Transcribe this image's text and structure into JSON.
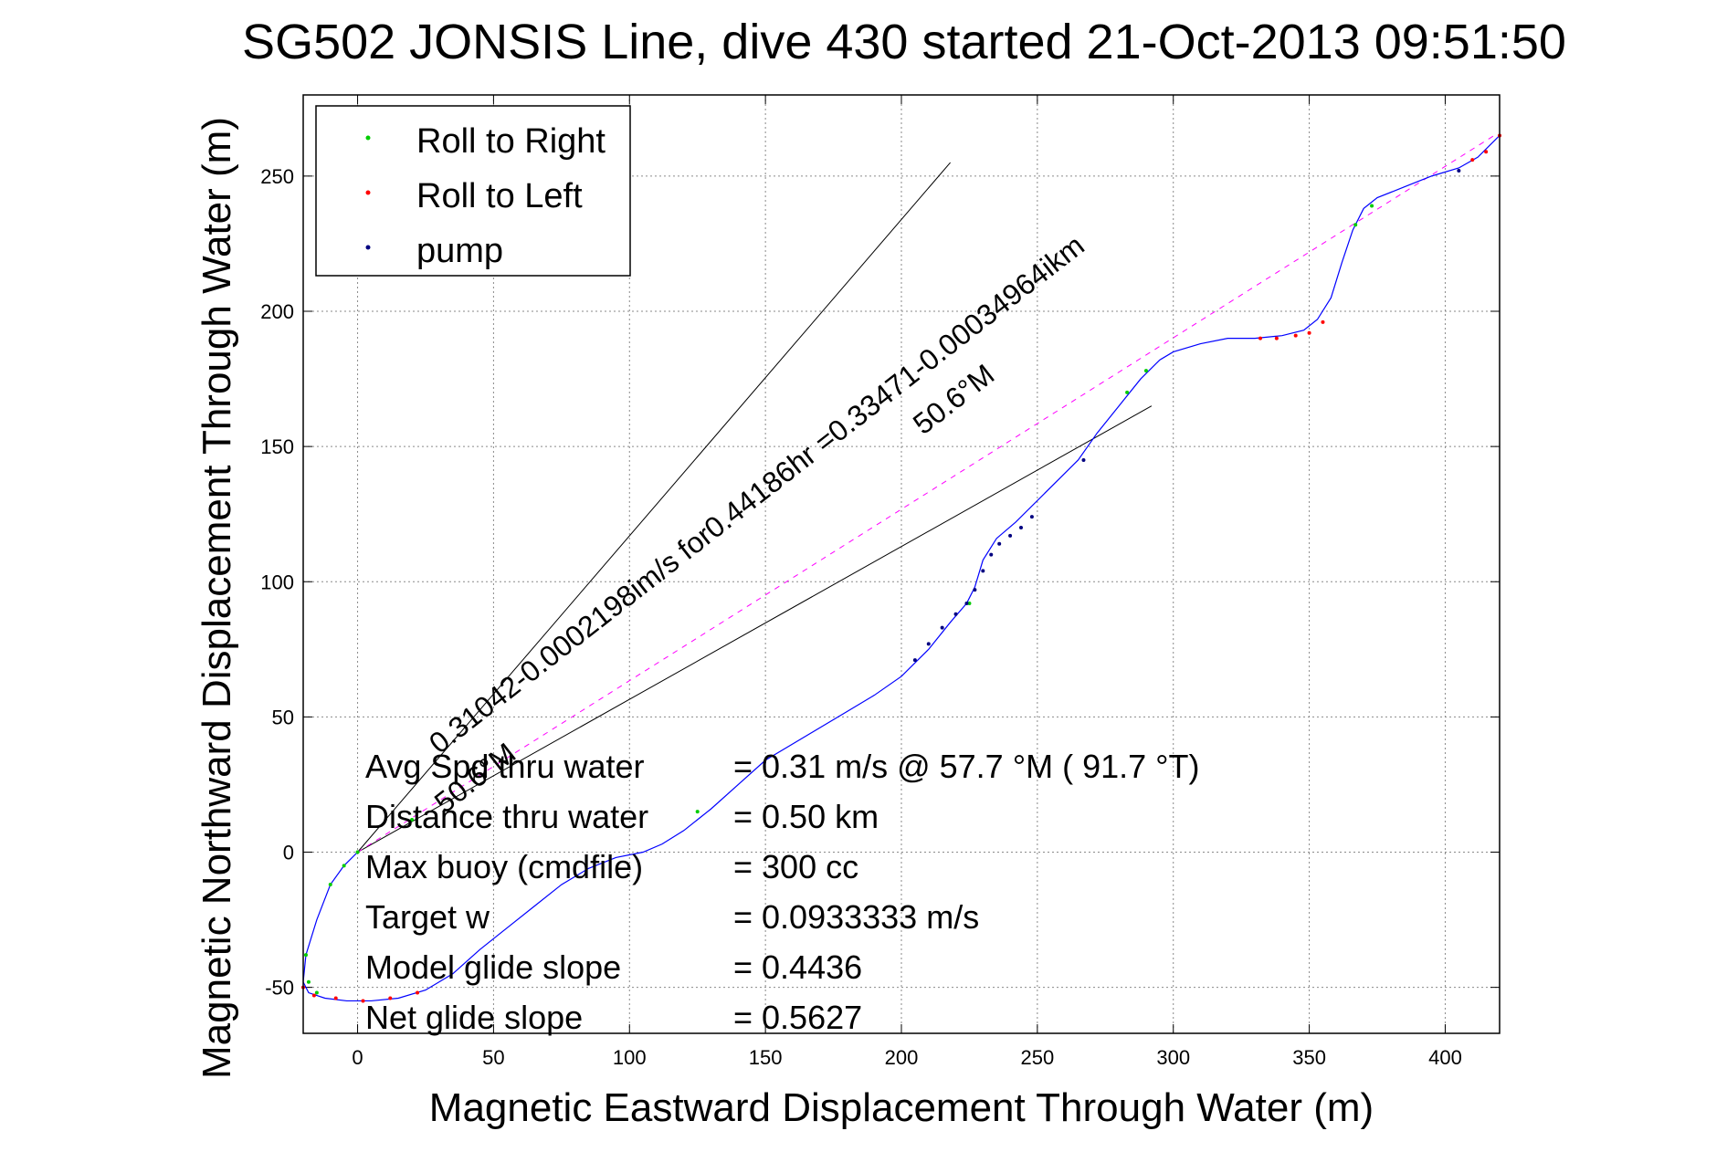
{
  "chart_data": {
    "type": "line",
    "title": "SG502 JONSIS Line, dive 430 started 21-Oct-2013 09:51:50",
    "xlabel": "Magnetic Eastward Displacement Through Water (m)",
    "ylabel": "Magnetic Northward Displacement Through Water (m)",
    "xlim": [
      -20,
      420
    ],
    "ylim": [
      -67,
      280
    ],
    "xticks": [
      0,
      50,
      100,
      150,
      200,
      250,
      300,
      350,
      400
    ],
    "yticks": [
      -50,
      0,
      50,
      100,
      150,
      200,
      250
    ],
    "grid": true,
    "legend_position": "top-left",
    "legend": [
      {
        "label": "Roll to Right",
        "color": "#00cc00"
      },
      {
        "label": "Roll to Left",
        "color": "#ff0000"
      },
      {
        "label": "pump",
        "color": "#000080"
      }
    ],
    "track": {
      "color": "#0000ff",
      "x": [
        0,
        -5,
        -10,
        -15,
        -19,
        -20,
        -18,
        -12,
        -4,
        5,
        15,
        25,
        35,
        45,
        55,
        65,
        75,
        85,
        95,
        105,
        112,
        120,
        130,
        140,
        150,
        160,
        170,
        180,
        190,
        200,
        210,
        218,
        224,
        227,
        230,
        235,
        242,
        250,
        258,
        265,
        272,
        280,
        288,
        295,
        300,
        310,
        320,
        330,
        340,
        348,
        353,
        358,
        362,
        366,
        370,
        375,
        385,
        395,
        405,
        412,
        420
      ],
      "y": [
        0,
        -5,
        -12,
        -25,
        -38,
        -48,
        -52,
        -54,
        -55,
        -55,
        -54,
        -51,
        -45,
        -36,
        -28,
        -20,
        -12,
        -6,
        -2,
        0,
        3,
        8,
        16,
        25,
        34,
        40,
        46,
        52,
        58,
        65,
        75,
        85,
        92,
        98,
        108,
        116,
        122,
        130,
        138,
        145,
        155,
        165,
        175,
        182,
        185,
        188,
        190,
        190,
        191,
        193,
        197,
        205,
        218,
        230,
        238,
        242,
        246,
        250,
        253,
        257,
        265
      ]
    },
    "roll_right_x": [
      -19,
      -18,
      -15,
      -10,
      -5,
      0,
      20,
      125,
      225,
      283,
      290,
      367,
      373
    ],
    "roll_right_y": [
      -38,
      -48,
      -52,
      -12,
      -5,
      0,
      12,
      15,
      92,
      170,
      178,
      232,
      239
    ],
    "roll_left_x": [
      -20,
      -16,
      -8,
      2,
      12,
      22,
      332,
      338,
      345,
      350,
      355,
      410,
      415,
      420
    ],
    "roll_left_y": [
      -50,
      -53,
      -54,
      -55,
      -54,
      -52,
      190,
      190,
      191,
      192,
      196,
      256,
      259,
      265
    ],
    "pump_x": [
      205,
      210,
      215,
      220,
      224,
      227,
      230,
      233,
      236,
      240,
      244,
      248,
      267,
      405
    ],
    "pump_y": [
      71,
      77,
      83,
      88,
      92,
      97,
      104,
      110,
      114,
      117,
      120,
      124,
      145,
      252
    ],
    "lines": [
      {
        "x": [
          0,
          218
        ],
        "y": [
          0,
          255
        ]
      },
      {
        "x": [
          0,
          292
        ],
        "y": [
          0,
          165
        ]
      },
      {
        "x": [
          0,
          418
        ],
        "y": [
          0,
          265
        ],
        "color": "#ff00ff",
        "dashed": true
      }
    ],
    "annotations": [
      {
        "text": "0.31042-0.0002198im/s for0.44186hr =0.33471-0.00034964ikm",
        "x": 30,
        "y": 36,
        "rotation": -38
      },
      {
        "text": "50.6°M",
        "x": 208,
        "y": 154,
        "rotation": -38
      },
      {
        "text": "50.6°M",
        "x": 32,
        "y": 14,
        "rotation": -38
      }
    ],
    "stats": [
      {
        "label": "Avg Spd thru water",
        "value": "=  0.31 m/s @  57.7 °M ( 91.7 °T)"
      },
      {
        "label": "Distance thru water",
        "value": "=  0.50 km"
      },
      {
        "label": "Max buoy (cmdfile)",
        "value": "= 300 cc"
      },
      {
        "label": "Target w",
        "value": "= 0.0933333 m/s"
      },
      {
        "label": "Model glide slope",
        "value": "= 0.4436"
      },
      {
        "label": "Net glide slope",
        "value": "= 0.5627"
      }
    ]
  }
}
